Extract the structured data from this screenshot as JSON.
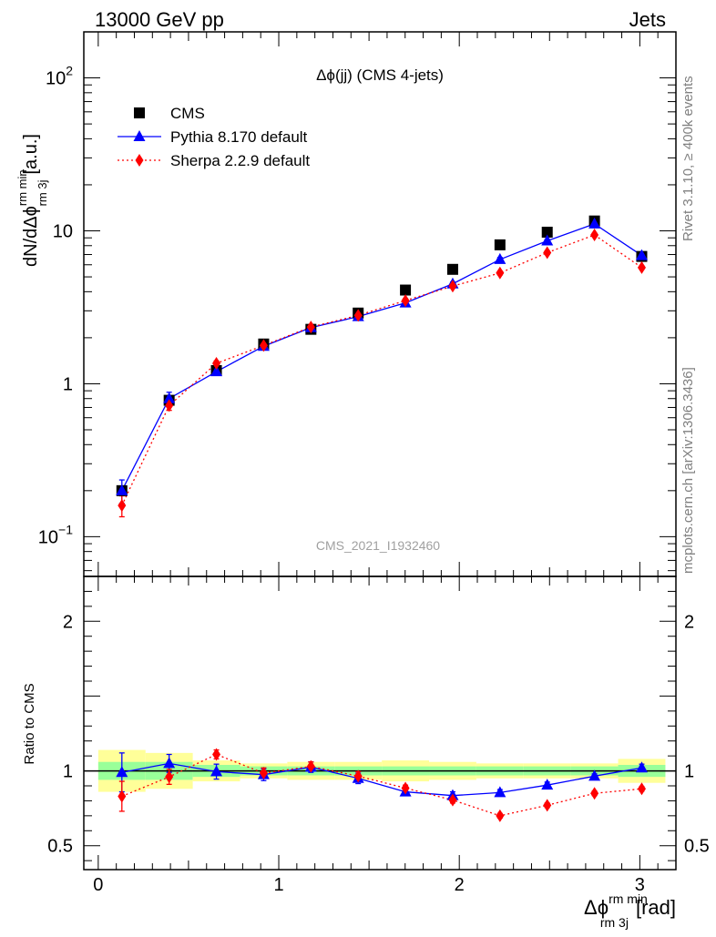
{
  "header": {
    "left": "13000 GeV pp",
    "right": "Jets"
  },
  "side_labels": {
    "rivet": "Rivet 3.1.10, ≥ 400k events",
    "mcplots": "mcplots.cern.ch [arXiv:1306.3436]"
  },
  "chart_data": {
    "type": "line",
    "title": "Δϕ(jj) (CMS 4-jets)",
    "watermark": "CMS_2021_I1932460",
    "x": [
      0.1309,
      0.3927,
      0.6545,
      0.9163,
      1.1781,
      1.4399,
      1.7017,
      1.9635,
      2.2253,
      2.4871,
      2.7489,
      3.0107
    ],
    "xlim": [
      -0.08,
      3.2
    ],
    "xticks": [
      0,
      1,
      2,
      3
    ],
    "xtick_labels": [
      "0",
      "1",
      "2",
      "3"
    ],
    "xlabel": {
      "main": "Δϕ",
      "sup": "rm min",
      "sub": "rm 3j",
      "unit": "[rad]"
    },
    "main_panel": {
      "yscale": "log",
      "ylim": [
        0.055,
        200
      ],
      "ytick_labels": [
        {
          "value": 0.1,
          "base": "10",
          "exp": "−1"
        },
        {
          "value": 1,
          "base": "1",
          "exp": ""
        },
        {
          "value": 10,
          "base": "10",
          "exp": ""
        },
        {
          "value": 100,
          "base": "10",
          "exp": "2"
        }
      ],
      "ylabel": {
        "main": "dN/dΔϕ",
        "sup": "rm min",
        "sub": "rm 3j",
        "unit": "[a.u.]"
      },
      "legend_position": "top-left",
      "series": [
        {
          "name": "CMS",
          "color": "#000000",
          "marker": "square",
          "line": "none",
          "values": [
            0.2,
            0.78,
            1.22,
            1.82,
            2.27,
            2.9,
            4.1,
            5.6,
            8.1,
            9.8,
            11.6,
            6.8
          ]
        },
        {
          "name": "Pythia 8.170 default",
          "color": "#0000ff",
          "marker": "triangle",
          "line": "solid",
          "values": [
            0.2,
            0.8,
            1.2,
            1.76,
            2.33,
            2.75,
            3.38,
            4.5,
            6.5,
            8.6,
            11.1,
            6.9
          ],
          "errors": [
            0.035,
            0.08,
            0.06,
            0.06,
            0.08,
            0.1,
            0.1,
            0.12,
            0.2,
            0.2,
            0.25,
            0.2
          ]
        },
        {
          "name": "Sherpa 2.2.9 default",
          "color": "#ff0000",
          "marker": "diamond",
          "line": "dotted",
          "values": [
            0.16,
            0.72,
            1.36,
            1.78,
            2.35,
            2.8,
            3.5,
            4.35,
            5.3,
            7.2,
            9.4,
            5.75
          ],
          "errors": [
            0.025,
            0.05,
            0.05,
            0.06,
            0.07,
            0.08,
            0.1,
            0.12,
            0.15,
            0.2,
            0.25,
            0.15
          ]
        }
      ]
    },
    "ratio_panel": {
      "ylabel": "Ratio to CMS",
      "ylim": [
        0.34,
        2.3
      ],
      "ytick_labels": [
        {
          "value": 0.5,
          "label": "0.5"
        },
        {
          "value": 1,
          "label": "1"
        },
        {
          "value": 2,
          "label": "2"
        }
      ],
      "bands": [
        {
          "inner": [
            0.94,
            1.06
          ],
          "outer": [
            0.86,
            1.14
          ]
        },
        {
          "inner": [
            0.94,
            1.06
          ],
          "outer": [
            0.88,
            1.12
          ]
        },
        {
          "inner": [
            0.96,
            1.04
          ],
          "outer": [
            0.93,
            1.07
          ]
        },
        {
          "inner": [
            0.97,
            1.03
          ],
          "outer": [
            0.95,
            1.05
          ]
        },
        {
          "inner": [
            0.97,
            1.03
          ],
          "outer": [
            0.94,
            1.06
          ]
        },
        {
          "inner": [
            0.97,
            1.03
          ],
          "outer": [
            0.94,
            1.06
          ]
        },
        {
          "inner": [
            0.97,
            1.03
          ],
          "outer": [
            0.93,
            1.07
          ]
        },
        {
          "inner": [
            0.97,
            1.03
          ],
          "outer": [
            0.94,
            1.06
          ]
        },
        {
          "inner": [
            0.97,
            1.03
          ],
          "outer": [
            0.95,
            1.05
          ]
        },
        {
          "inner": [
            0.97,
            1.03
          ],
          "outer": [
            0.95,
            1.05
          ]
        },
        {
          "inner": [
            0.97,
            1.03
          ],
          "outer": [
            0.95,
            1.05
          ]
        },
        {
          "inner": [
            0.96,
            1.04
          ],
          "outer": [
            0.92,
            1.08
          ]
        }
      ],
      "series": [
        {
          "name": "Pythia 8.170 default",
          "color": "#0000ff",
          "values": [
            0.99,
            1.05,
            0.995,
            0.975,
            1.025,
            0.95,
            0.86,
            0.835,
            0.855,
            0.905,
            0.965,
            1.02
          ],
          "errors": [
            0.13,
            0.06,
            0.05,
            0.04,
            0.035,
            0.035,
            0.025,
            0.025,
            0.02,
            0.02,
            0.015,
            0.025
          ]
        },
        {
          "name": "Sherpa 2.2.9 default",
          "color": "#ff0000",
          "values": [
            0.83,
            0.96,
            1.11,
            0.985,
            1.03,
            0.965,
            0.885,
            0.805,
            0.7,
            0.77,
            0.85,
            0.88
          ],
          "errors": [
            0.1,
            0.05,
            0.03,
            0.035,
            0.03,
            0.03,
            0.02,
            0.02,
            0.015,
            0.015,
            0.015,
            0.015
          ]
        }
      ]
    }
  }
}
